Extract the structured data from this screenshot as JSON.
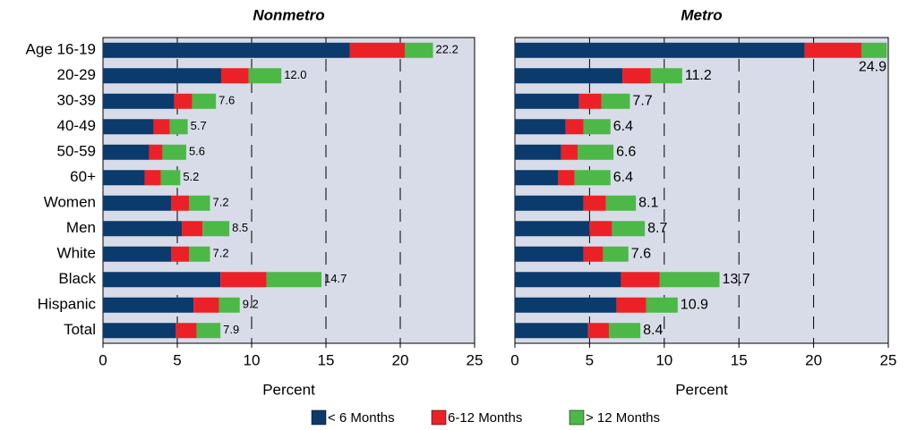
{
  "chart_data": [
    {
      "type": "stacked-bar-horizontal",
      "title": "Nonmetro",
      "x_label": "Percent",
      "categories": [
        "Age 16-19",
        "20-29",
        "30-39",
        "40-49",
        "50-59",
        "60+",
        "Women",
        "Men",
        "White",
        "Black",
        "Hispanic",
        "Total"
      ],
      "series": [
        {
          "name": "< 6 Months",
          "color": "#0b3a6d",
          "values": [
            16.6,
            7.95,
            4.8,
            3.4,
            3.1,
            2.8,
            4.6,
            5.3,
            4.6,
            7.9,
            6.1,
            4.9
          ]
        },
        {
          "name": "6-12 Months",
          "color": "#ec2127",
          "values": [
            3.7,
            1.85,
            1.2,
            1.1,
            0.9,
            1.1,
            1.2,
            1.4,
            1.2,
            3.1,
            1.7,
            1.4
          ]
        },
        {
          "name": "> 12 Months",
          "color": "#4cb848",
          "values": [
            1.9,
            2.2,
            1.6,
            1.2,
            1.6,
            1.3,
            1.4,
            1.8,
            1.4,
            3.7,
            1.4,
            1.6
          ]
        }
      ],
      "totals": [
        22.2,
        12.0,
        7.6,
        5.7,
        5.6,
        5.2,
        7.2,
        8.5,
        7.2,
        14.7,
        9.2,
        7.9
      ],
      "total_labels": [
        "22.2",
        "12.0",
        "7.6",
        "5.7",
        "5.6",
        "5.2",
        "7.2",
        "8.5",
        "7.2",
        "14.7",
        "9.2",
        "7.9"
      ],
      "xlim": [
        0,
        25
      ],
      "xticks": [
        0,
        5,
        10,
        15,
        20,
        25
      ],
      "grid": true
    },
    {
      "type": "stacked-bar-horizontal",
      "title": "Metro",
      "x_label": "Percent",
      "series": [
        {
          "name": "< 6 Months",
          "color": "#0b3a6d",
          "values": [
            19.4,
            7.2,
            4.3,
            3.4,
            3.1,
            2.9,
            4.6,
            5.0,
            4.6,
            7.1,
            6.8,
            4.9
          ]
        },
        {
          "name": "6-12 Months",
          "color": "#ec2127",
          "values": [
            3.8,
            1.9,
            1.5,
            1.2,
            1.1,
            1.1,
            1.5,
            1.5,
            1.3,
            2.6,
            2.0,
            1.4
          ]
        },
        {
          "name": "> 12 Months",
          "color": "#4cb848",
          "values": [
            1.7,
            2.1,
            1.9,
            1.8,
            2.4,
            2.4,
            2.0,
            2.2,
            1.7,
            4.0,
            2.1,
            2.1
          ]
        }
      ],
      "totals": [
        24.9,
        11.2,
        7.7,
        6.4,
        6.6,
        6.4,
        8.1,
        8.7,
        7.6,
        13.7,
        10.9,
        8.4
      ],
      "total_labels": [
        "24.9",
        "11.2",
        "7.7",
        "6.4",
        "6.6",
        "6.4",
        "8.1",
        "8.7",
        "7.6",
        "13.7",
        "10.9",
        "8.4"
      ],
      "xlim": [
        0,
        25
      ],
      "xticks": [
        0,
        5,
        10,
        15,
        20,
        25
      ],
      "grid": true
    }
  ]
}
